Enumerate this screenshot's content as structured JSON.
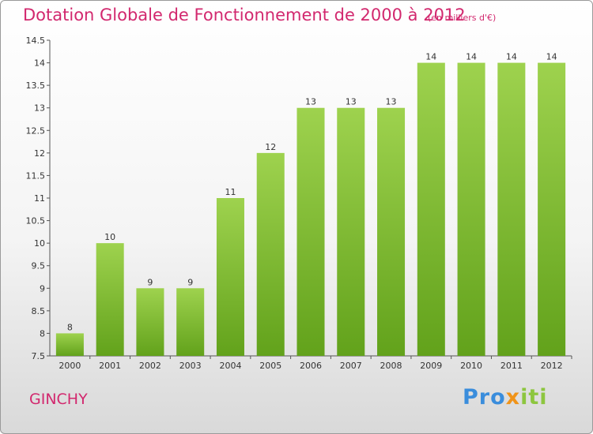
{
  "chart_data": {
    "type": "bar",
    "title": "Dotation Globale de Fonctionnement de 2000 à 2012",
    "subtitle": "(en milliers d'€)",
    "categories": [
      "2000",
      "2001",
      "2002",
      "2003",
      "2004",
      "2005",
      "2006",
      "2007",
      "2008",
      "2009",
      "2010",
      "2011",
      "2012"
    ],
    "values": [
      8,
      10,
      9,
      9,
      11,
      12,
      13,
      13,
      13,
      14,
      14,
      14,
      14
    ],
    "ylim": [
      7.5,
      14.5
    ],
    "yticks": [
      7.5,
      8,
      8.5,
      9,
      9.5,
      10,
      10.5,
      11,
      11.5,
      12,
      12.5,
      13,
      13.5,
      14,
      14.5
    ],
    "ytick_labels": [
      "7.5",
      "8",
      "8.5",
      "9",
      "9.5",
      "10",
      "10.5",
      "11",
      "11.5",
      "12",
      "12.5",
      "13",
      "13.5",
      "14",
      "14.5"
    ],
    "xlabel": "",
    "ylabel": "",
    "grid": false,
    "bar_color": "#7fbf2f",
    "title_color": "#d2286e"
  },
  "footer": {
    "commune": "GINCHY",
    "logo_text": "Proxiti"
  }
}
